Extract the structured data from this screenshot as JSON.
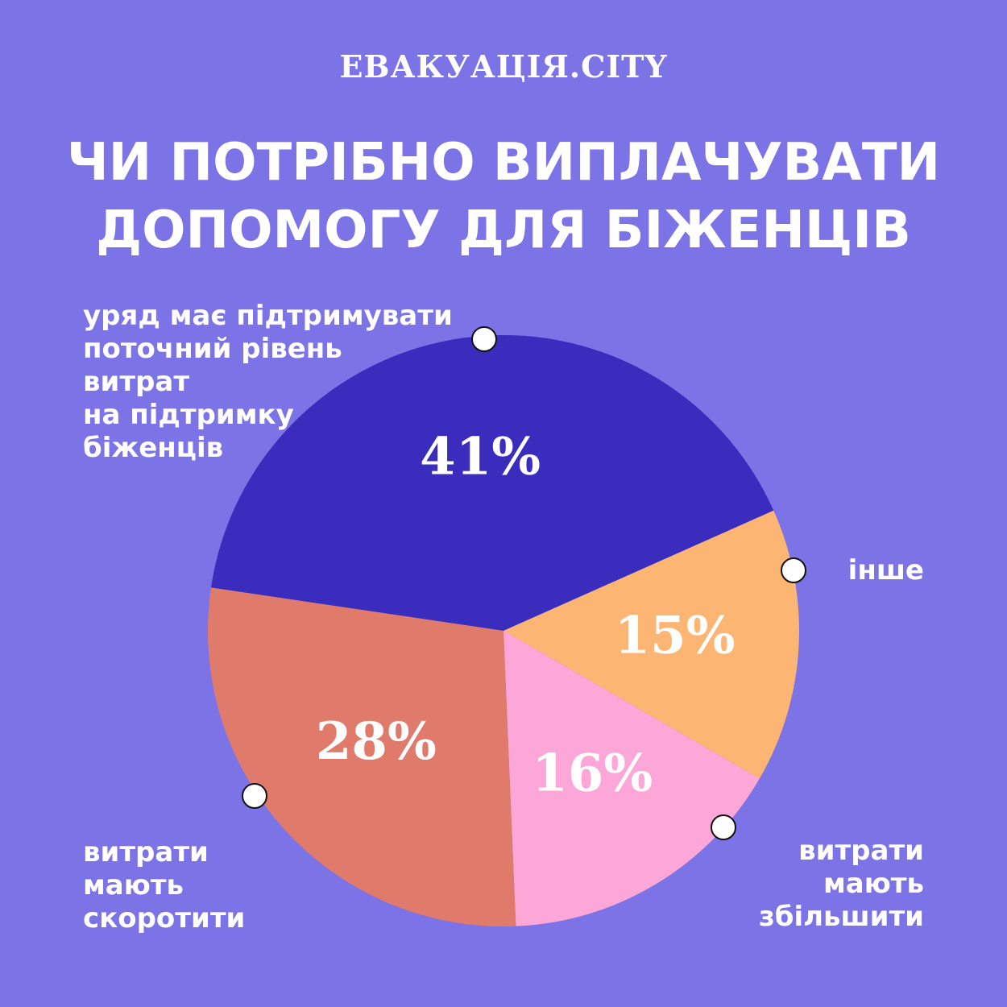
{
  "chart_data": {
    "type": "pie",
    "brand": "ЕВАКУАЦІЯ.CITY",
    "title": "ЧИ ПОТРІБНО ВИПЛАЧУВАТИ\nДОПОМОГУ ДЛЯ БІЖЕНЦІВ",
    "categories": [
      "уряд має підтримувати\nпоточний рівень\nвитрат\nна підтримку\nбіженців",
      "інше",
      "витрати\nмають\nзбільшити",
      "витрати\nмають\nскоротити"
    ],
    "values": [
      41,
      15,
      16,
      28
    ],
    "value_labels": [
      "41%",
      "15%",
      "16%",
      "28%"
    ],
    "colors": [
      "#3a2dbd",
      "#fdb574",
      "#fda6d8",
      "#e07b6c"
    ]
  }
}
